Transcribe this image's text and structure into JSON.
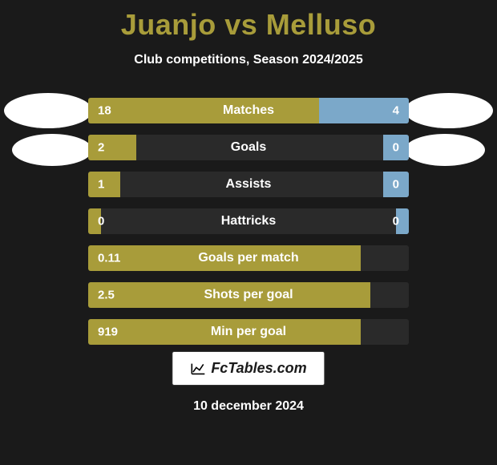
{
  "title": {
    "player1": "Juanjo",
    "vs": "vs",
    "player2": "Melluso",
    "color": "#a89c3a"
  },
  "subtitle": "Club competitions, Season 2024/2025",
  "colors": {
    "left_fill": "#a89c3a",
    "right_fill": "#7ba8c9",
    "row_bg": "#2a2a2a",
    "text": "#ffffff",
    "body_bg": "#1a1a1a"
  },
  "rows": [
    {
      "label": "Matches",
      "left": "18",
      "right": "4",
      "left_pct": 72,
      "right_pct": 28
    },
    {
      "label": "Goals",
      "left": "2",
      "right": "0",
      "left_pct": 15,
      "right_pct": 8
    },
    {
      "label": "Assists",
      "left": "1",
      "right": "0",
      "left_pct": 10,
      "right_pct": 8
    },
    {
      "label": "Hattricks",
      "left": "0",
      "right": "0",
      "left_pct": 4,
      "right_pct": 4
    },
    {
      "label": "Goals per match",
      "left": "0.11",
      "right": "",
      "left_pct": 85,
      "right_pct": 0
    },
    {
      "label": "Shots per goal",
      "left": "2.5",
      "right": "",
      "left_pct": 88,
      "right_pct": 0
    },
    {
      "label": "Min per goal",
      "left": "919",
      "right": "",
      "left_pct": 85,
      "right_pct": 0
    }
  ],
  "footer": {
    "badge": "FcTables.com",
    "date": "10 december 2024"
  }
}
